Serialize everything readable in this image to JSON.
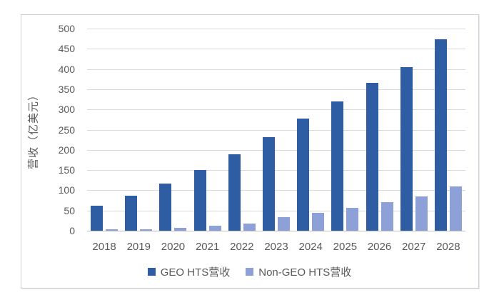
{
  "chart_data": {
    "type": "bar",
    "title": "",
    "categories": [
      "2018",
      "2019",
      "2020",
      "2021",
      "2022",
      "2023",
      "2024",
      "2025",
      "2026",
      "2027",
      "2028"
    ],
    "series": [
      {
        "name": "GEO HTS营收",
        "color": "#2f5da4",
        "values": [
          62,
          86,
          116,
          151,
          189,
          232,
          277,
          320,
          365,
          405,
          474
        ]
      },
      {
        "name": "Non-GEO HTS营收",
        "color": "#8ea0d8",
        "values": [
          3,
          4,
          7,
          13,
          18,
          33,
          45,
          57,
          70,
          85,
          110
        ]
      }
    ],
    "xlabel": "",
    "ylabel": "营收（亿美元）",
    "ylim": [
      0,
      500
    ],
    "ytick_step": 50,
    "grid": "horizontal",
    "legend_position": "bottom"
  },
  "style": {
    "gridline_color": "#d9d9d9",
    "axis_line_color": "#bfbfbf",
    "text_color": "#595959",
    "frame_border_color": "#cfcfd6",
    "background_color": "#ffffff"
  }
}
